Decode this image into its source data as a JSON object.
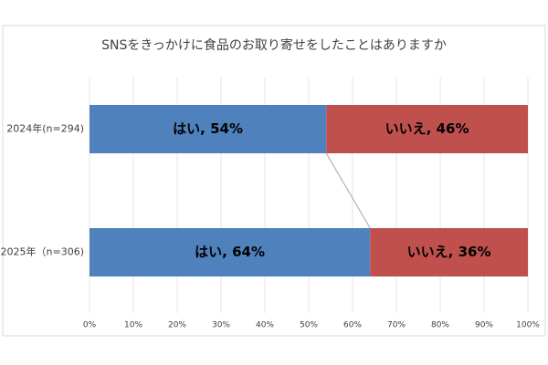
{
  "chart_data": {
    "type": "stacked-bar-horizontal",
    "title": "SNSをきっかけに食品のお取り寄せをしたことはありますか",
    "categories": [
      "2024年(n=294)",
      "2025年（n=306)"
    ],
    "series": [
      {
        "color": "#4f81bd",
        "values": [
          54,
          64
        ],
        "value_labels": [
          "はい, 54%",
          "はい, 64%"
        ]
      },
      {
        "color": "#c0504d",
        "values": [
          46,
          36
        ],
        "value_labels": [
          "いいえ, 46%",
          "いいえ, 36%"
        ]
      }
    ],
    "xlim": [
      0,
      100
    ],
    "xticks": [
      {
        "value": 0,
        "label": "0%"
      },
      {
        "value": 10,
        "label": "10%"
      },
      {
        "value": 20,
        "label": "20%"
      },
      {
        "value": 30,
        "label": "30%"
      },
      {
        "value": 40,
        "label": "40%"
      },
      {
        "value": 50,
        "label": "50%"
      },
      {
        "value": 60,
        "label": "60%"
      },
      {
        "value": 70,
        "label": "70%"
      },
      {
        "value": 80,
        "label": "80%"
      },
      {
        "value": 90,
        "label": "90%"
      },
      {
        "value": 100,
        "label": "100%"
      }
    ],
    "grid": true
  }
}
